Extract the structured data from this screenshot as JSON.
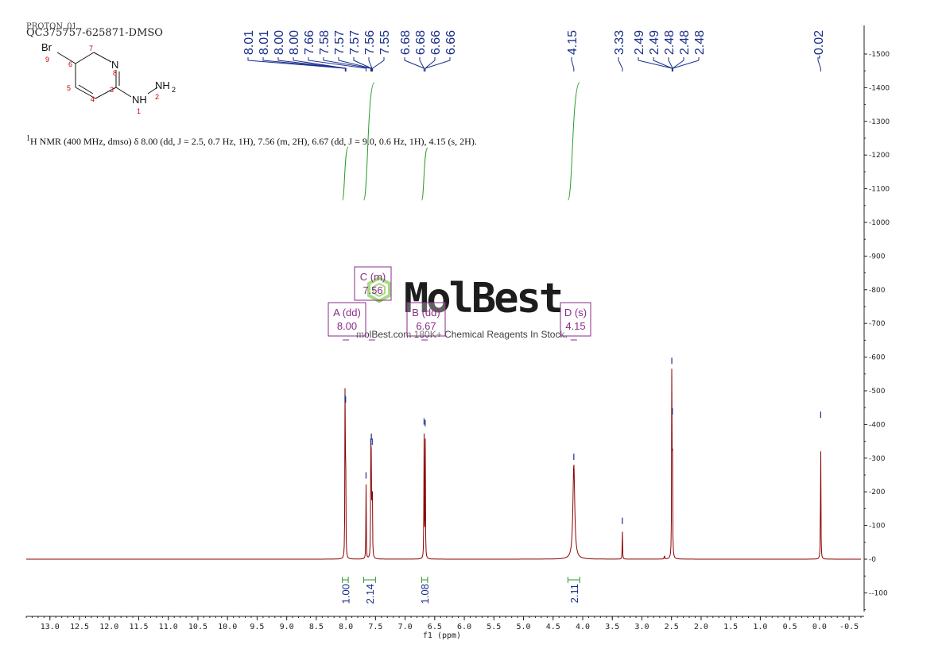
{
  "header": {
    "overlay_text": "PROTON_01",
    "sample_name": "QC375757-625871-DMSO"
  },
  "molecule": {
    "atoms": {
      "br": "Br",
      "n_ring": "N",
      "nh": "NH",
      "nh2": "NH",
      "nh2_sub": "2"
    },
    "numbering": [
      "1",
      "2",
      "3",
      "4",
      "5",
      "6",
      "7",
      "8",
      "9"
    ]
  },
  "summary": {
    "sup": "1",
    "text": "H NMR (400 MHz, dmso) δ 8.00 (dd, J = 2.5, 0.7 Hz, 1H), 7.56 (m, 2H), 6.67 (dd, J = 9.0, 0.6 Hz, 1H), 4.15 (s, 2H)."
  },
  "watermark": {
    "logo": "MolBest",
    "tagline": "molBest.com 180K+ Chemical Reagents In Stock."
  },
  "colors": {
    "spectrum": "#8b0000",
    "peak_labels": "#1a2f8c",
    "integral_curve": "#2a9a2a",
    "multiplet_box": "#8a2b8a",
    "logo_green": "#7ac943"
  },
  "chart_data": {
    "type": "line",
    "xlabel": "f1 (ppm)",
    "ylabel": "",
    "xlim": [
      13.4,
      -0.7
    ],
    "ylim": [
      -160,
      1590
    ],
    "x_reversed": true,
    "x_ticks": [
      "13.0",
      "12.5",
      "12.0",
      "11.5",
      "11.0",
      "10.5",
      "10.0",
      "9.5",
      "9.0",
      "8.5",
      "8.0",
      "7.5",
      "7.0",
      "6.5",
      "6.0",
      "5.5",
      "5.0",
      "4.5",
      "4.0",
      "3.5",
      "3.0",
      "2.5",
      "2.0",
      "1.5",
      "1.0",
      "0.5",
      "0.0",
      "-0.5"
    ],
    "y_ticks": [
      "1500",
      "1400",
      "1300",
      "1200",
      "1100",
      "1000",
      "900",
      "800",
      "700",
      "600",
      "500",
      "400",
      "300",
      "200",
      "100",
      "0",
      "-100"
    ],
    "peak_labels": [
      {
        "group": "A",
        "labels": [
          "8.01",
          "8.01",
          "8.00",
          "8.00"
        ]
      },
      {
        "group": "C",
        "labels": [
          "7.66",
          "7.58",
          "7.57",
          "7.57",
          "7.56",
          "7.55"
        ]
      },
      {
        "group": "B",
        "labels": [
          "6.68",
          "6.68",
          "6.66",
          "6.66"
        ]
      },
      {
        "group": "D",
        "labels": [
          "4.15"
        ]
      },
      {
        "group": "W",
        "labels": [
          "3.33"
        ]
      },
      {
        "group": "S",
        "labels": [
          "2.49",
          "2.49",
          "2.48",
          "2.48",
          "2.48"
        ]
      },
      {
        "group": "T",
        "labels": [
          "-0.02"
        ]
      }
    ],
    "peaks": [
      {
        "ppm": 8.015,
        "height": 460
      },
      {
        "ppm": 8.005,
        "height": 455
      },
      {
        "ppm": 7.66,
        "height": 230
      },
      {
        "ppm": 7.58,
        "height": 330
      },
      {
        "ppm": 7.57,
        "height": 345
      },
      {
        "ppm": 7.555,
        "height": 330
      },
      {
        "ppm": 6.68,
        "height": 390
      },
      {
        "ppm": 6.66,
        "height": 385
      },
      {
        "ppm": 4.15,
        "height": 285,
        "broad": true
      },
      {
        "ppm": 3.33,
        "height": 95
      },
      {
        "ppm": 2.62,
        "height": 15
      },
      {
        "ppm": 2.495,
        "height": 570
      },
      {
        "ppm": 2.485,
        "height": 420
      },
      {
        "ppm": -0.02,
        "height": 410
      }
    ],
    "multiplets": [
      {
        "label": "A (dd)",
        "shift": "8.00",
        "ppm": 8.0
      },
      {
        "label": "C (m)",
        "shift": "7.56",
        "ppm": 7.56
      },
      {
        "label": "B (dd)",
        "shift": "6.67",
        "ppm": 6.67
      },
      {
        "label": "D (s)",
        "shift": "4.15",
        "ppm": 4.15
      }
    ],
    "integrals": [
      {
        "value": "1.00",
        "from": 8.06,
        "to": 7.96
      },
      {
        "value": "2.14",
        "from": 7.7,
        "to": 7.5
      },
      {
        "value": "1.08",
        "from": 6.72,
        "to": 6.62
      },
      {
        "value": "2.11",
        "from": 4.25,
        "to": 4.05
      }
    ]
  }
}
